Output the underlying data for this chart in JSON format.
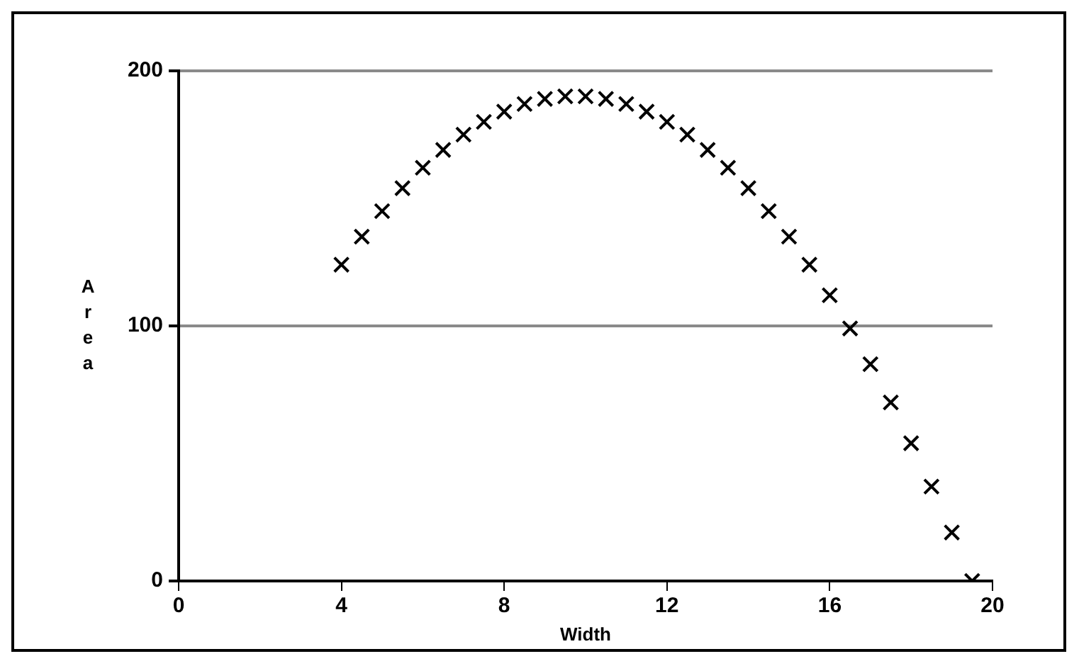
{
  "chart_data": {
    "type": "scatter",
    "xlabel": "Width",
    "ylabel": "Area",
    "x": [
      4,
      4.5,
      5,
      5.5,
      6,
      6.5,
      7,
      7.5,
      8,
      8.5,
      9,
      9.5,
      10,
      10.5,
      11,
      11.5,
      12,
      12.5,
      13,
      13.5,
      14,
      14.5,
      15,
      15.5,
      16,
      16.5,
      17,
      17.5,
      18,
      18.5,
      19,
      19.5
    ],
    "values": [
      124,
      135,
      145,
      154,
      162,
      169,
      175,
      180,
      184,
      187,
      189,
      190,
      190,
      189,
      187,
      184,
      180,
      175,
      169,
      162,
      154,
      145,
      135,
      124,
      112,
      99,
      85,
      70,
      54,
      37,
      19,
      0
    ],
    "color": "#000000",
    "marker": "cross",
    "xlim": [
      0,
      20
    ],
    "xticks": [
      0,
      4,
      8,
      12,
      16,
      20
    ],
    "ylim": [
      0,
      200
    ],
    "yticks": [
      0,
      100,
      200
    ],
    "grid": "y",
    "legend": false
  }
}
